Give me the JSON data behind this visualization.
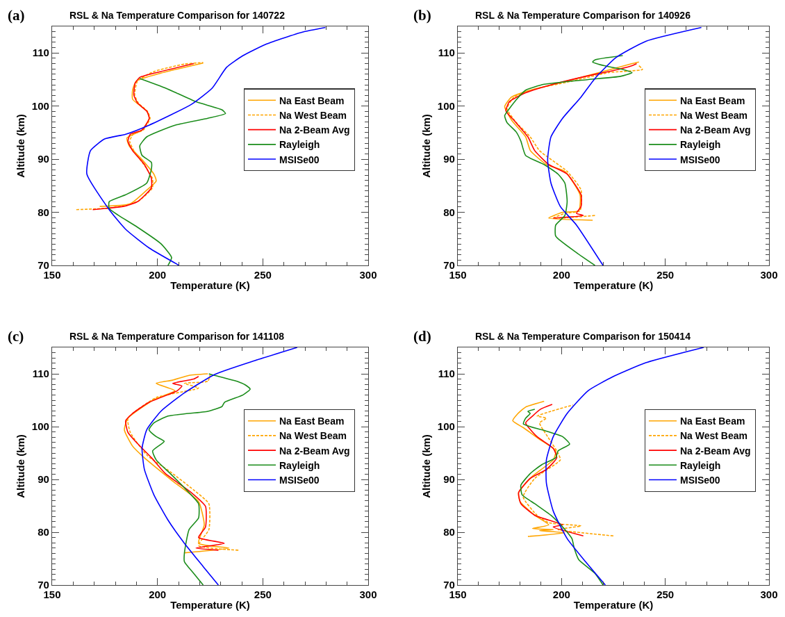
{
  "chart_data": [
    {
      "type": "line",
      "title": "RSL & Na Temperature Comparison for 140722",
      "annotations": [
        "(a)"
      ],
      "xlabel": "Temperature (K)",
      "ylabel": "Altitude (km)",
      "xlim": [
        150,
        300
      ],
      "ylim": [
        70,
        115
      ],
      "xticks": [
        150,
        200,
        250,
        300
      ],
      "yticks": [
        70,
        80,
        90,
        100,
        110
      ],
      "legend": "right",
      "series": [
        {
          "name": "Na East Beam",
          "color": "#ffa500",
          "line_style": "solid",
          "x": [
            172.6,
            187.1,
            195,
            199.4,
            198.3,
            192.7,
            186.6,
            185.5,
            192.7,
            196.1,
            195,
            188.2,
            188.2,
            189.9,
            201.6,
            221.7
          ],
          "values": [
            81.1,
            81.6,
            84.2,
            85.9,
            87.2,
            89.9,
            92.5,
            94,
            95.5,
            97.7,
            99,
            101.3,
            103,
            104.7,
            106.2,
            108.1
          ]
        },
        {
          "name": "Na West Beam",
          "color": "#ffa500",
          "line_style": "dashed",
          "x": [
            161.5,
            177.1,
            184.5,
            191,
            197.6,
            197.6,
            193.5,
            188.8,
            186.8,
            188.5,
            193.3,
            196.5,
            195.3,
            190.9,
            189.2,
            190.5,
            198.3,
            212.8,
            221.7
          ],
          "values": [
            80.5,
            80.8,
            81.3,
            82.1,
            84.6,
            86.4,
            89,
            91.6,
            93.4,
            94.7,
            95.5,
            97.7,
            99,
            100.6,
            102.1,
            104.7,
            106.5,
            107.9,
            108.2
          ]
        },
        {
          "name": "Na 2-Beam Avg",
          "color": "#ff0000",
          "line_style": "solid",
          "x": [
            169.3,
            177.1,
            183.8,
            190.5,
            197.1,
            197.1,
            193.8,
            188.2,
            186,
            187.1,
            192.7,
            196.1,
            195,
            190.5,
            188.8,
            189.4,
            191.6,
            201.6,
            217.2
          ],
          "values": [
            80.5,
            80.8,
            81.1,
            82,
            84.6,
            86.4,
            89,
            91.6,
            93.4,
            94.7,
            95.5,
            97.7,
            99,
            100.6,
            102.1,
            104.3,
            105.4,
            106.5,
            108
          ]
        },
        {
          "name": "Rayleigh",
          "color": "#1a8c1a",
          "line_style": "solid",
          "x": [
            205,
            206.7,
            201.6,
            190.5,
            181.6,
            177.1,
            177.1,
            184.9,
            194.9,
            197.1,
            197.1,
            192.7,
            191.6,
            194.9,
            208.3,
            223.9,
            232.3,
            230.6,
            218.4,
            203.8,
            191.6
          ],
          "values": [
            70,
            71.5,
            74.1,
            77.2,
            79.4,
            80.7,
            82,
            83.3,
            85.5,
            88.1,
            89.4,
            90.7,
            92.5,
            94.2,
            96.4,
            97.7,
            98.6,
            99.3,
            100.8,
            103.4,
            105.2
          ]
        },
        {
          "name": "MSISe00",
          "color": "#0000ff",
          "line_style": "solid",
          "x": [
            210.3,
            196,
            184.9,
            177.1,
            166.5,
            168.2,
            174.9,
            184.9,
            196,
            216,
            226,
            232.8,
            240.6,
            251.8,
            268.5,
            279.7
          ],
          "values": [
            70,
            73.3,
            76.8,
            80.5,
            87.2,
            91.6,
            93.8,
            94.7,
            96.4,
            100.3,
            103.4,
            107.3,
            109.5,
            111.7,
            113.9,
            114.8
          ]
        }
      ]
    },
    {
      "type": "line",
      "title": "RSL & Na Temperature Comparison for 140926",
      "annotations": [
        "(b)"
      ],
      "xlabel": "Temperature (K)",
      "ylabel": "Altitude (km)",
      "xlim": [
        150,
        300
      ],
      "ylim": [
        70,
        115
      ],
      "xticks": [
        150,
        200,
        250,
        300
      ],
      "yticks": [
        70,
        80,
        90,
        100,
        110
      ],
      "legend": "right",
      "series": [
        {
          "name": "Na East Beam",
          "color": "#ffa500",
          "line_style": "solid",
          "x": [
            215,
            193.8,
            200.5,
            208.3,
            208.9,
            201.6,
            192.7,
            185,
            182.7,
            176,
            172.6,
            175.9,
            184.9,
            198.3,
            216.1,
            234,
            237.3
          ],
          "values": [
            78.5,
            78.9,
            80,
            80.3,
            83.3,
            87.7,
            89,
            91.6,
            94.2,
            97.3,
            99.9,
            101.7,
            103,
            104.3,
            106.1,
            108,
            108.3
          ]
        },
        {
          "name": "Na West Beam",
          "color": "#ffa500",
          "line_style": "dashed",
          "x": [
            216.1,
            196,
            201.6,
            208.9,
            209.4,
            202.7,
            189.4,
            184.9,
            178.2,
            173.7,
            177.1,
            187.1,
            202.7,
            222.8,
            239,
            237.3
          ],
          "values": [
            79.4,
            78.9,
            79.8,
            80.3,
            84.2,
            87.7,
            91.6,
            94.2,
            96.9,
            99.5,
            101.7,
            103.2,
            104.5,
            106.3,
            106.9,
            107.6
          ]
        },
        {
          "name": "Na 2-Beam Avg",
          "color": "#ff0000",
          "line_style": "solid",
          "x": [
            196,
            210.5,
            207.2,
            209.4,
            209.4,
            202.7,
            193.8,
            187.1,
            183.8,
            177.1,
            173.2,
            174.8,
            182.7,
            196,
            211.6,
            227.3,
            234,
            236.2
          ],
          "values": [
            78.9,
            79.4,
            79.8,
            81.1,
            83.3,
            87.2,
            89,
            91.6,
            94.2,
            97.3,
            99.1,
            100.8,
            102.5,
            104.1,
            105.6,
            106.9,
            107.6,
            108
          ]
        },
        {
          "name": "Rayleigh",
          "color": "#1a8c1a",
          "line_style": "solid",
          "x": [
            216.1,
            207.2,
            197.2,
            197.2,
            201.6,
            202.7,
            201.6,
            198.3,
            191.6,
            182.7,
            180.4,
            178.2,
            173.7,
            172.6,
            174.8,
            179.3,
            182.7,
            191.6,
            212.8,
            228.4,
            234,
            229.5,
            220.6,
            215,
            216.1,
            229.5
          ],
          "values": [
            70,
            72.4,
            75.5,
            77.6,
            79.4,
            82,
            85.5,
            87.2,
            89,
            90.7,
            93.4,
            95.1,
            96.9,
            98.2,
            99.5,
            101.7,
            103,
            104.1,
            105,
            105.6,
            106.3,
            106.9,
            107.6,
            108.3,
            108.7,
            109.5
          ]
        },
        {
          "name": "MSISe00",
          "color": "#0000ff",
          "line_style": "solid",
          "x": [
            220,
            207.2,
            199.4,
            194.9,
            193.3,
            194.9,
            200.5,
            209.4,
            216.1,
            226.1,
            240.6,
            267.4
          ],
          "values": [
            70,
            77.6,
            81.1,
            85.5,
            89.9,
            94.2,
            97.7,
            101.7,
            105.2,
            109.1,
            112.2,
            114.8
          ]
        }
      ]
    },
    {
      "type": "line",
      "title": "RSL & Na Temperature Comparison for 141108",
      "annotations": [
        "(c)"
      ],
      "xlabel": "Temperature (K)",
      "ylabel": "Altitude (km)",
      "xlim": [
        150,
        300
      ],
      "ylim": [
        70,
        115
      ],
      "xticks": [
        150,
        200,
        250,
        300
      ],
      "yticks": [
        70,
        80,
        90,
        100,
        110
      ],
      "legend": "right",
      "series": [
        {
          "name": "Na East Beam",
          "color": "#ffa500",
          "line_style": "solid",
          "x": [
            212.8,
            233.9,
            219.5,
            222.2,
            219.5,
            207.2,
            193.8,
            188.2,
            184.3,
            186,
            198.3,
            208.3,
            199.4,
            207.2,
            215,
            223.9
          ],
          "values": [
            76.1,
            77,
            77.9,
            81.4,
            85.8,
            89.7,
            94.1,
            96.3,
            99.4,
            101.6,
            105.1,
            106.8,
            108.2,
            108.8,
            109.7,
            110
          ]
        },
        {
          "name": "Na West Beam",
          "color": "#ffa500",
          "line_style": "dashed",
          "x": [
            238.4,
            219.5,
            224.4,
            224.4,
            217.2,
            205.9,
            195,
            187.1,
            186,
            199.4,
            219.5,
            212.8,
            223.9,
            225
          ],
          "values": [
            76.6,
            77.5,
            80.5,
            85.4,
            88,
            91.5,
            94.6,
            98.9,
            101.6,
            105.5,
            107.3,
            108.2,
            108.6,
            109.8
          ]
        },
        {
          "name": "Na 2-Beam Avg",
          "color": "#ff0000",
          "line_style": "solid",
          "x": [
            228.9,
            218.3,
            231.7,
            219.5,
            222.8,
            222.8,
            216.1,
            203.8,
            197.2,
            190.5,
            186,
            184.9,
            188.2,
            196,
            209.4,
            211.6,
            207.2,
            217.2,
            219.5
          ],
          "values": [
            76.6,
            77,
            77.9,
            79,
            81,
            84.9,
            87.5,
            91.1,
            94.1,
            96.8,
            98.9,
            101.1,
            102.5,
            104.6,
            106.8,
            107.7,
            108.2,
            109,
            109.5
          ]
        },
        {
          "name": "Rayleigh",
          "color": "#1a8c1a",
          "line_style": "solid",
          "x": [
            221.7,
            217.2,
            212.8,
            212.8,
            215,
            219.5,
            219.5,
            212.8,
            206.1,
            199.4,
            197.7,
            203.2,
            199.4,
            196,
            198.3,
            205,
            223.9,
            230.6,
            231.8,
            240.6,
            244,
            241.7,
            238.4,
            226.1,
            224.4
          ],
          "values": [
            70,
            72.2,
            74.4,
            76.1,
            80.5,
            82.7,
            85.4,
            88.4,
            91.1,
            93.7,
            95.4,
            97.2,
            98.1,
            99.4,
            100.7,
            102,
            102.9,
            103.8,
            104.6,
            106,
            107.1,
            107.9,
            108.5,
            109.8,
            110
          ]
        },
        {
          "name": "MSISe00",
          "color": "#0000ff",
          "line_style": "solid",
          "x": [
            228.9,
            221.7,
            212.8,
            205,
            198.3,
            193.8,
            192.7,
            194.9,
            201.6,
            212.8,
            227.3,
            246.2,
            266.3
          ],
          "values": [
            70,
            73.5,
            77.9,
            82.3,
            87.1,
            91.9,
            95.9,
            99.4,
            102.9,
            106.4,
            109.9,
            112.5,
            115
          ]
        }
      ]
    },
    {
      "type": "line",
      "title": "RSL & Na Temperature Comparison for 150414",
      "annotations": [
        "(d)"
      ],
      "xlabel": "Temperature (K)",
      "ylabel": "Altitude (km)",
      "xlim": [
        150,
        300
      ],
      "ylim": [
        70,
        115
      ],
      "xticks": [
        150,
        200,
        250,
        300
      ],
      "yticks": [
        70,
        80,
        90,
        100,
        110
      ],
      "legend": "right",
      "series": [
        {
          "name": "Na East Beam",
          "color": "#ffa500",
          "line_style": "solid",
          "x": [
            183.8,
            201.6,
            189.4,
            196,
            186,
            193.8,
            187.1,
            180,
            179.3,
            186,
            196,
            197.2,
            189.4,
            181.6,
            176.5,
            178.8,
            182.7,
            191.6
          ],
          "values": [
            79.2,
            79.9,
            80.3,
            80.5,
            80.7,
            81.4,
            83.2,
            85.8,
            87.5,
            90.6,
            93.7,
            95.4,
            97.6,
            99.8,
            101.1,
            102.4,
            103.7,
            104.8
          ]
        },
        {
          "name": "Na West Beam",
          "color": "#ffa500",
          "line_style": "dashed",
          "x": [
            225,
            198.3,
            209.4,
            193.8,
            188.2,
            181.5,
            187.1,
            199.4,
            198.3,
            193.3,
            189.4,
            192.7,
            188.2,
            194.9,
            205.5
          ],
          "values": [
            79.3,
            80.5,
            81.2,
            81.8,
            83.2,
            86.7,
            90.2,
            93.7,
            95,
            98.1,
            100.7,
            101.6,
            102,
            102.9,
            104.1
          ]
        },
        {
          "name": "Na 2-Beam Avg",
          "color": "#ff0000",
          "line_style": "solid",
          "x": [
            210.5,
            196,
            200.5,
            193.8,
            187.1,
            180.4,
            179.3,
            184.9,
            192.7,
            197.7,
            196,
            188.2,
            182.7,
            186,
            189.9,
            195.5
          ],
          "values": [
            79.3,
            81,
            81.4,
            82.3,
            83.2,
            85.4,
            87.5,
            90.2,
            91.9,
            94.1,
            95.9,
            98.1,
            100.7,
            102,
            103.3,
            104.2
          ]
        },
        {
          "name": "Rayleigh",
          "color": "#1a8c1a",
          "line_style": "solid",
          "x": [
            220,
            216.1,
            208.3,
            206.1,
            205,
            200.5,
            194.9,
            187.1,
            181,
            180.4,
            184.9,
            190.5,
            197.2,
            198.3,
            203.9,
            200.5,
            190.5,
            181.6,
            182.7,
            184.9,
            183.8,
            187.1
          ],
          "values": [
            70,
            72.2,
            74.8,
            77,
            78.8,
            81,
            83.2,
            85.4,
            87.1,
            88.9,
            91.1,
            92.8,
            94.1,
            95.4,
            96.7,
            98.1,
            99.4,
            100.5,
            101.6,
            102.5,
            102.9,
            103.3
          ]
        },
        {
          "name": "MSISe00",
          "color": "#0000ff",
          "line_style": "solid",
          "x": [
            221.1,
            211.6,
            202.7,
            196,
            192.7,
            192.7,
            196,
            202.7,
            212.8,
            225,
            240.6,
            268.5
          ],
          "values": [
            70,
            74.4,
            78.8,
            84,
            89.3,
            93.7,
            98.1,
            102.5,
            106.8,
            109.5,
            112.1,
            115
          ]
        }
      ]
    }
  ]
}
